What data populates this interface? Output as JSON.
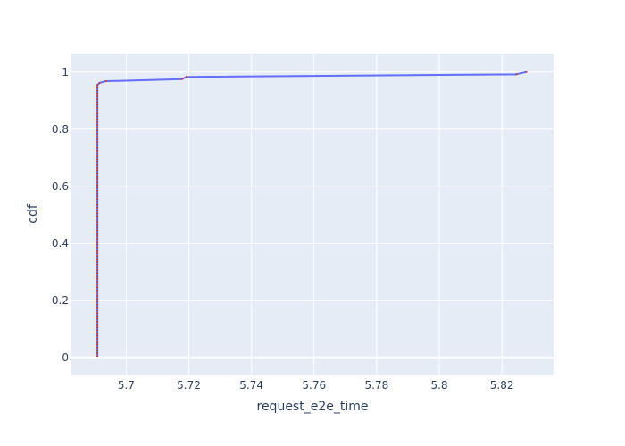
{
  "chart_data": {
    "type": "line",
    "title": "",
    "xlabel": "request_e2e_time",
    "ylabel": "cdf",
    "xlim": [
      5.6825,
      5.8365
    ],
    "ylim": [
      -0.06,
      1.065
    ],
    "xticks": [
      5.7,
      5.72,
      5.74,
      5.76,
      5.78,
      5.8,
      5.82
    ],
    "yticks": [
      0,
      0.2,
      0.4,
      0.6,
      0.8,
      1
    ],
    "grid": true,
    "line_color": "#636efa",
    "marker_color": "#d62728",
    "plot_background": "#e5ecf6",
    "x": [
      5.6908,
      5.6908,
      5.6908,
      5.6908,
      5.6908,
      5.6908,
      5.6908,
      5.6908,
      5.6908,
      5.6908,
      5.6908,
      5.6908,
      5.6908,
      5.6908,
      5.6908,
      5.6908,
      5.6908,
      5.6908,
      5.6908,
      5.6908,
      5.6908,
      5.6908,
      5.6908,
      5.6908,
      5.6908,
      5.6908,
      5.6908,
      5.6908,
      5.6908,
      5.6908,
      5.6908,
      5.6908,
      5.6908,
      5.6908,
      5.6908,
      5.6908,
      5.6908,
      5.6908,
      5.6908,
      5.6908,
      5.6908,
      5.6908,
      5.6908,
      5.6908,
      5.6908,
      5.6908,
      5.6908,
      5.6908,
      5.6908,
      5.6908,
      5.6908,
      5.6908,
      5.6908,
      5.6908,
      5.6908,
      5.6908,
      5.6908,
      5.6908,
      5.6908,
      5.6908,
      5.6908,
      5.6908,
      5.6908,
      5.6908,
      5.6908,
      5.6908,
      5.6908,
      5.6908,
      5.6908,
      5.6908,
      5.6908,
      5.6908,
      5.6908,
      5.6908,
      5.6908,
      5.6908,
      5.6908,
      5.6908,
      5.6908,
      5.6908,
      5.6908,
      5.6908,
      5.6908,
      5.6908,
      5.6908,
      5.6908,
      5.6908,
      5.6908,
      5.6908,
      5.6908,
      5.6908,
      5.6908,
      5.6908,
      5.6908,
      5.6908,
      5.6908,
      5.6915,
      5.6935,
      5.7178,
      5.7192,
      5.8245,
      5.8278
    ],
    "y": [
      0.005,
      0.015,
      0.025,
      0.035,
      0.045,
      0.055,
      0.065,
      0.075,
      0.085,
      0.095,
      0.105,
      0.115,
      0.125,
      0.135,
      0.145,
      0.155,
      0.165,
      0.175,
      0.185,
      0.195,
      0.205,
      0.215,
      0.225,
      0.235,
      0.245,
      0.255,
      0.265,
      0.275,
      0.285,
      0.295,
      0.305,
      0.315,
      0.325,
      0.335,
      0.345,
      0.355,
      0.365,
      0.375,
      0.385,
      0.395,
      0.405,
      0.415,
      0.425,
      0.435,
      0.445,
      0.455,
      0.465,
      0.475,
      0.485,
      0.495,
      0.505,
      0.515,
      0.525,
      0.535,
      0.545,
      0.555,
      0.565,
      0.575,
      0.585,
      0.595,
      0.605,
      0.615,
      0.625,
      0.635,
      0.645,
      0.655,
      0.665,
      0.675,
      0.685,
      0.695,
      0.705,
      0.715,
      0.725,
      0.735,
      0.745,
      0.755,
      0.765,
      0.775,
      0.785,
      0.795,
      0.805,
      0.815,
      0.825,
      0.835,
      0.845,
      0.855,
      0.865,
      0.875,
      0.885,
      0.895,
      0.905,
      0.915,
      0.925,
      0.935,
      0.945,
      0.955,
      0.962,
      0.968,
      0.975,
      0.983,
      0.992,
      1.0
    ]
  }
}
